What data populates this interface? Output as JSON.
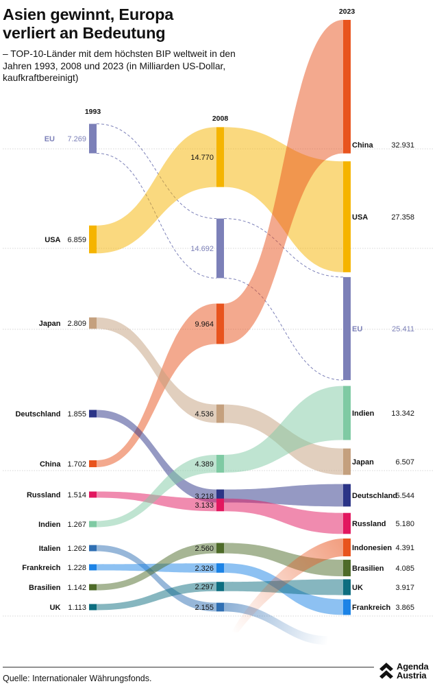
{
  "title": "Asien gewinnt, Europa verliert an Bedeutung",
  "subtitle": "– TOP-10-Länder mit dem höchsten BIP weltweit in den Jahren 1993, 2008 und 2023 (in Milliarden US-Dollar, kaufkraftbereinigt)",
  "source": "Quelle: Internationaler Währungsfonds.",
  "logo": {
    "line1": "Agenda",
    "line2": "Austria"
  },
  "chart_data": {
    "type": "sankey-bump",
    "unit": "Milliarden US-Dollar, kaufkraftbereinigt",
    "years": [
      "1993",
      "2008",
      "2023"
    ],
    "countries": [
      {
        "name": "EU",
        "color": "#7c80b8",
        "dashed": true,
        "values": {
          "1993": "7.269",
          "2008": "14.692",
          "2023": "25.411"
        }
      },
      {
        "name": "USA",
        "color": "#f5b400",
        "values": {
          "1993": "6.859",
          "2008": "14.770",
          "2023": "27.358"
        }
      },
      {
        "name": "China",
        "color": "#e8541e",
        "values": {
          "1993": "1.702",
          "2008": "9.964",
          "2023": "32.931"
        }
      },
      {
        "name": "Japan",
        "color": "#c4a07e",
        "values": {
          "1993": "2.809",
          "2008": "4.536",
          "2023": "6.507"
        }
      },
      {
        "name": "Deutschland",
        "color": "#2b3487",
        "values": {
          "1993": "1.855",
          "2008": "3.218",
          "2023": "5.544"
        }
      },
      {
        "name": "Russland",
        "color": "#e2175f",
        "values": {
          "1993": "1.514",
          "2008": "3.133",
          "2023": "5.180"
        }
      },
      {
        "name": "Indien",
        "color": "#7fcaa3",
        "values": {
          "1993": "1.267",
          "2008": "4.389",
          "2023": "13.342"
        }
      },
      {
        "name": "Italien",
        "color": "#2f6fb3",
        "values": {
          "1993": "1.262",
          "2008": "2.155"
        }
      },
      {
        "name": "Frankreich",
        "color": "#1c83e6",
        "values": {
          "1993": "1.228",
          "2008": "2.326",
          "2023": "3.865"
        }
      },
      {
        "name": "Brasilien",
        "color": "#4e6b29",
        "values": {
          "1993": "1.142",
          "2008": "2.560",
          "2023": "4.085"
        }
      },
      {
        "name": "UK",
        "color": "#0d6e80",
        "values": {
          "1993": "1.113",
          "2008": "2.297",
          "2023": "3.917"
        }
      },
      {
        "name": "Indonesien",
        "color": "#e8541e",
        "values": {
          "2023": "4.391"
        }
      }
    ]
  }
}
